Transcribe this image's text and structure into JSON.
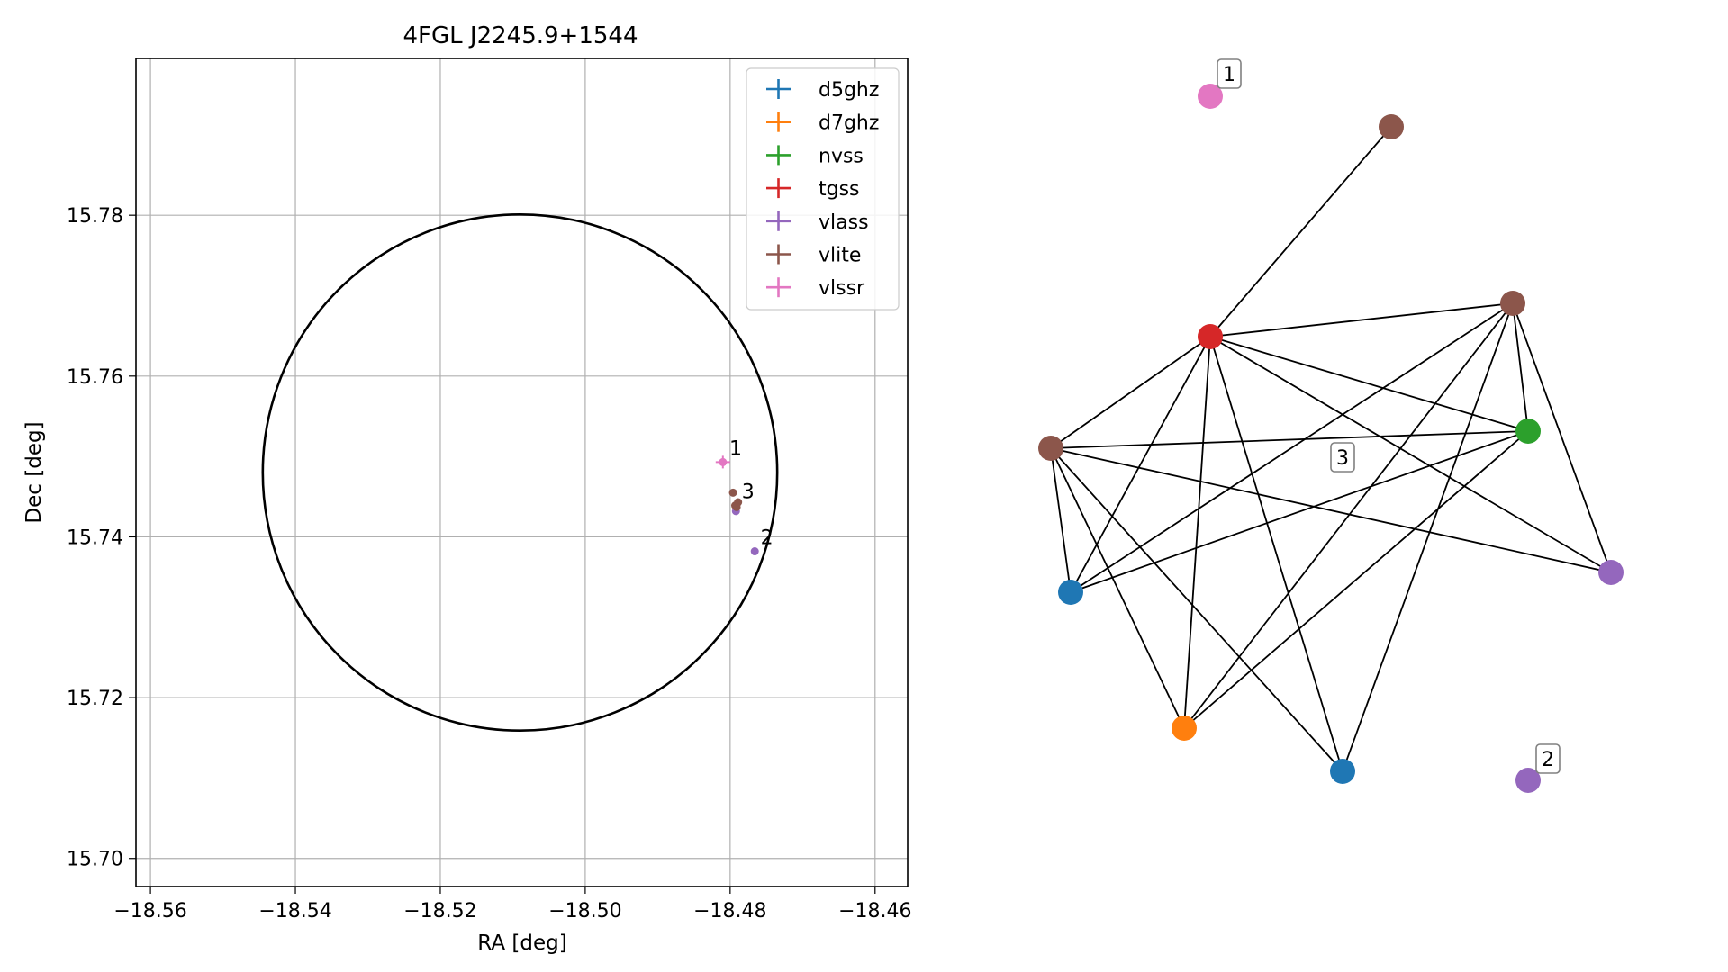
{
  "chart_data": [
    {
      "type": "scatter",
      "title": "4FGL J2245.9+1544",
      "xlabel": "RA [deg]",
      "ylabel": "Dec [deg]",
      "xlim": [
        -18.562,
        -18.4555
      ],
      "ylim": [
        15.6965,
        15.7995
      ],
      "xticks": [
        -18.56,
        -18.54,
        -18.52,
        -18.5,
        -18.48,
        -18.46
      ],
      "xtick_labels": [
        "−18.56",
        "−18.54",
        "−18.52",
        "−18.50",
        "−18.48",
        "−18.46"
      ],
      "yticks": [
        15.7,
        15.72,
        15.74,
        15.76,
        15.78
      ],
      "ytick_labels": [
        "15.70",
        "15.72",
        "15.74",
        "15.76",
        "15.78"
      ],
      "grid": true,
      "legend_position": "top-right",
      "ellipse": {
        "center": [
          -18.509,
          15.748
        ],
        "ra_semi_axis": 0.0355,
        "dec_semi_axis": 0.0321
      },
      "series": [
        {
          "name": "d5ghz",
          "color": "#1f77b4",
          "points": []
        },
        {
          "name": "d7ghz",
          "color": "#ff7f0e",
          "points": []
        },
        {
          "name": "nvss",
          "color": "#2ca02c",
          "points": []
        },
        {
          "name": "tgss",
          "color": "#d62728",
          "points": []
        },
        {
          "name": "vlass",
          "color": "#9467bd",
          "points": [
            [
              -18.4792,
              15.7432
            ],
            [
              -18.4766,
              15.7382
            ]
          ]
        },
        {
          "name": "vlite",
          "color": "#8c564b",
          "points": [
            [
              -18.4796,
              15.7455
            ],
            [
              -18.4789,
              15.7443
            ],
            [
              -18.4793,
              15.7439
            ],
            [
              -18.4791,
              15.7437
            ]
          ]
        },
        {
          "name": "vlssr",
          "color": "#e377c2",
          "points": [
            [
              -18.481,
              15.7493
            ]
          ]
        }
      ],
      "annotations": [
        {
          "text": "1",
          "x": -18.4801,
          "y": 15.7502
        },
        {
          "text": "3",
          "x": -18.4784,
          "y": 15.7448
        },
        {
          "text": "2",
          "x": -18.4758,
          "y": 15.7391
        }
      ]
    },
    {
      "type": "network",
      "nodes": [
        {
          "id": "n1",
          "color": "#e377c2",
          "label": "1"
        },
        {
          "id": "n2",
          "color": "#8c564b"
        },
        {
          "id": "n3",
          "color": "#d62728"
        },
        {
          "id": "n4",
          "color": "#8c564b"
        },
        {
          "id": "n5",
          "color": "#8c564b"
        },
        {
          "id": "n6",
          "color": "#2ca02c"
        },
        {
          "id": "n7",
          "color": "#9467bd"
        },
        {
          "id": "n8",
          "color": "#1f77b4"
        },
        {
          "id": "n9",
          "color": "#ff7f0e"
        },
        {
          "id": "n10",
          "color": "#1f77b4"
        },
        {
          "id": "n11",
          "color": "#9467bd",
          "label": "2"
        }
      ],
      "edges": [
        [
          "n3",
          "n2"
        ],
        [
          "n3",
          "n4"
        ],
        [
          "n3",
          "n5"
        ],
        [
          "n3",
          "n6"
        ],
        [
          "n3",
          "n7"
        ],
        [
          "n3",
          "n8"
        ],
        [
          "n3",
          "n9"
        ],
        [
          "n3",
          "n10"
        ],
        [
          "n4",
          "n6"
        ],
        [
          "n4",
          "n7"
        ],
        [
          "n4",
          "n8"
        ],
        [
          "n4",
          "n9"
        ],
        [
          "n4",
          "n10"
        ],
        [
          "n5",
          "n6"
        ],
        [
          "n5",
          "n7"
        ],
        [
          "n5",
          "n8"
        ],
        [
          "n5",
          "n9"
        ],
        [
          "n5",
          "n10"
        ],
        [
          "n6",
          "n8"
        ],
        [
          "n6",
          "n9"
        ]
      ],
      "floating_labels": [
        "3"
      ]
    }
  ]
}
